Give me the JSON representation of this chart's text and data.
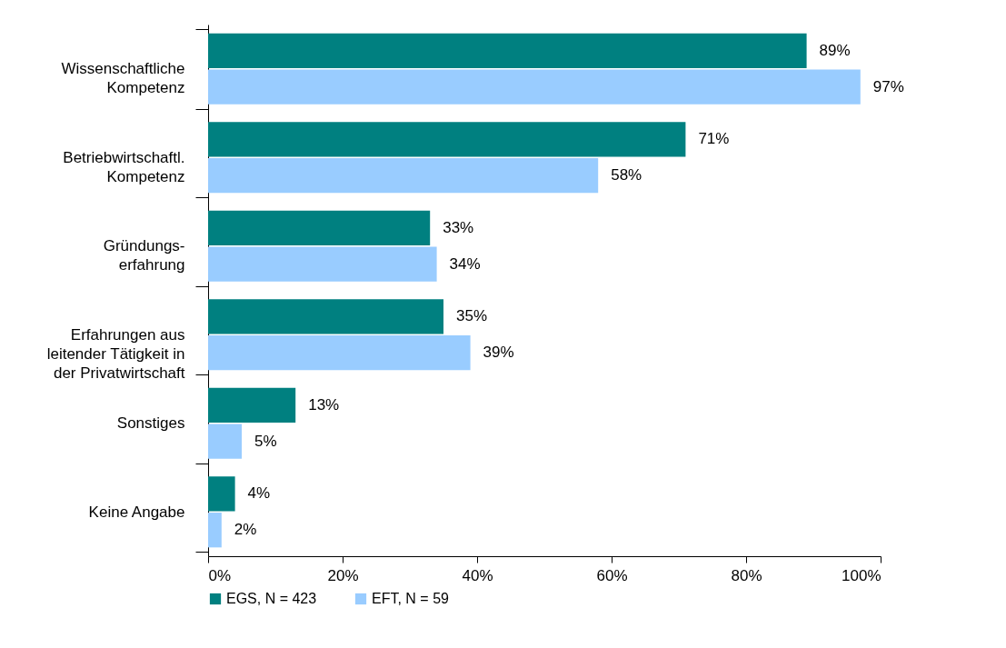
{
  "chart_data": {
    "type": "bar",
    "orientation": "horizontal",
    "categories": [
      "Wissenschaftliche\nKompetenz",
      "Betriebwirtschaftl.\nKompetenz",
      "Gründungs-\nerfahrung",
      "Erfahrungen aus\nleitender Tätigkeit in\nder Privatwirtschaft",
      "Sonstiges",
      "Keine Angabe"
    ],
    "series": [
      {
        "name": "EGS, N = 423",
        "color": "#008080",
        "values": [
          89,
          71,
          33,
          35,
          13,
          4
        ],
        "value_labels": [
          "89%",
          "71%",
          "33%",
          "35%",
          "13%",
          "4%"
        ]
      },
      {
        "name": "EFT, N = 59",
        "color": "#99ccff",
        "values": [
          97,
          58,
          34,
          39,
          5,
          2
        ],
        "value_labels": [
          "97%",
          "58%",
          "34%",
          "39%",
          "5%",
          "2%"
        ]
      }
    ],
    "xlim": [
      0,
      100
    ],
    "xticks": [
      {
        "value": 0,
        "label": "0%"
      },
      {
        "value": 20,
        "label": "20%"
      },
      {
        "value": 40,
        "label": "40%"
      },
      {
        "value": 60,
        "label": "60%"
      },
      {
        "value": 80,
        "label": "80%"
      },
      {
        "value": 100,
        "label": "100%"
      }
    ],
    "legend": "bottom"
  }
}
